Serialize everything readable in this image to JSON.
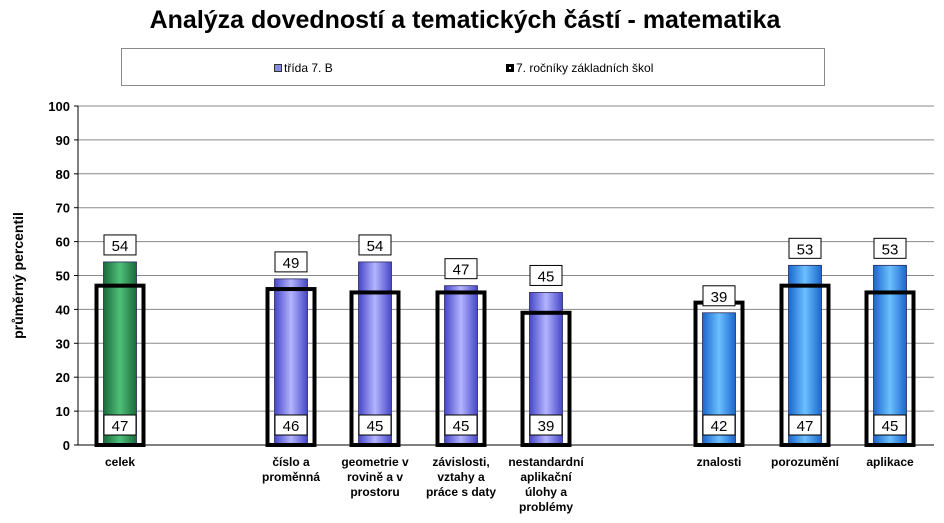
{
  "chart_data": {
    "type": "bar",
    "title": "Analýza dovedností a tematických částí - matematika",
    "ylabel": "průměrný percentil",
    "xlabel": "",
    "ylim": [
      0,
      100
    ],
    "yticks": [
      0,
      10,
      20,
      30,
      40,
      50,
      60,
      70,
      80,
      90,
      100
    ],
    "grid": true,
    "legend_position": "top",
    "categories": [
      [
        "celek"
      ],
      [
        "číslo a",
        "proměnná"
      ],
      [
        "geometrie v",
        "rovině a v",
        "prostoru"
      ],
      [
        "závislosti,",
        "vztahy a",
        "práce s daty"
      ],
      [
        "nestandardní",
        "aplikační",
        "úlohy a",
        "problémy"
      ],
      [
        "znalosti"
      ],
      [
        "porozumění"
      ],
      [
        "aplikace"
      ]
    ],
    "series": [
      {
        "name": "třída  7. B",
        "values": [
          54,
          49,
          54,
          47,
          45,
          39,
          53,
          53
        ]
      },
      {
        "name": "7. ročníky základních škol",
        "values": [
          47,
          46,
          45,
          45,
          39,
          42,
          47,
          45
        ]
      }
    ],
    "colors": {
      "celek": "#2e9a5a",
      "tematicke": "#7070e0",
      "dovednosti": "#2a88ee",
      "grid": "#8a8a8a",
      "outline": "#000000"
    }
  }
}
